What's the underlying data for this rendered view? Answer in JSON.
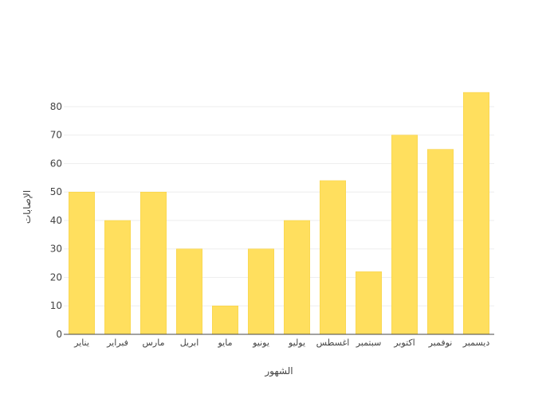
{
  "chart_data": {
    "type": "bar",
    "title": "",
    "xlabel": "الشهور",
    "ylabel": "الإصابات",
    "categories": [
      "يناير",
      "فبراير",
      "مارس",
      "ابريل",
      "مايو",
      "يونيو",
      "يوليو",
      "اغسطس",
      "سبتمبر",
      "اكتوبر",
      "نوفمبر",
      "ديسمبر"
    ],
    "values": [
      50,
      40,
      50,
      30,
      10,
      30,
      40,
      54,
      22,
      70,
      65,
      85
    ],
    "ylim": [
      0,
      89.5
    ],
    "yticks": [
      0,
      10,
      20,
      30,
      40,
      50,
      60,
      70,
      80
    ],
    "grid": true,
    "legend": "none",
    "colors": {
      "bar": "#ffdf5e",
      "bar_edge": "#f5cf3f",
      "grid": "#eeeeee",
      "axis": "#444444",
      "tick_text": "#444444"
    }
  }
}
